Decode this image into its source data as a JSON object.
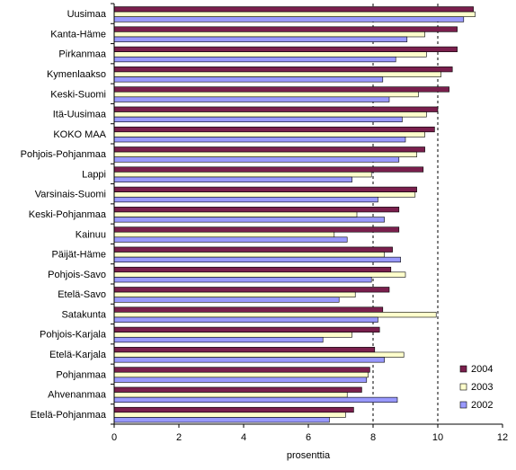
{
  "chart_data": {
    "type": "bar",
    "orientation": "horizontal",
    "xlabel": "prosenttia",
    "xlim": [
      0,
      12
    ],
    "xticks": [
      0,
      2,
      4,
      6,
      8,
      10,
      12
    ],
    "grid": false,
    "reference_lines": [
      8,
      10
    ],
    "legend_position": "bottom-right",
    "categories": [
      "Uusimaa",
      "Kanta-Häme",
      "Pirkanmaa",
      "Kymenlaakso",
      "Keski-Suomi",
      "Itä-Uusimaa",
      "KOKO MAA",
      "Pohjois-Pohjanmaa",
      "Lappi",
      "Varsinais-Suomi",
      "Keski-Pohjanmaa",
      "Kainuu",
      "Päijät-Häme",
      "Pohjois-Savo",
      "Etelä-Savo",
      "Satakunta",
      "Pohjois-Karjala",
      "Etelä-Karjala",
      "Pohjanmaa",
      "Ahvenanmaa",
      "Etelä-Pohjanmaa"
    ],
    "series": [
      {
        "name": "2004",
        "color": "#7a1f4d",
        "values": [
          11.1,
          10.6,
          10.6,
          10.45,
          10.35,
          10.0,
          9.9,
          9.6,
          9.55,
          9.35,
          8.8,
          8.8,
          8.6,
          8.55,
          8.5,
          8.3,
          8.2,
          8.05,
          7.9,
          7.65,
          7.4
        ]
      },
      {
        "name": "2003",
        "color": "#ffffcc",
        "values": [
          11.15,
          9.6,
          9.65,
          10.1,
          9.4,
          9.65,
          9.6,
          9.35,
          7.95,
          9.3,
          7.5,
          6.8,
          8.35,
          9.0,
          7.45,
          9.95,
          7.35,
          8.95,
          7.85,
          7.2,
          7.15
        ]
      },
      {
        "name": "2002",
        "color": "#9999ff",
        "values": [
          10.8,
          9.05,
          8.7,
          8.3,
          8.5,
          8.9,
          9.0,
          8.8,
          7.35,
          8.15,
          8.35,
          7.2,
          8.85,
          7.95,
          6.95,
          8.15,
          6.45,
          8.35,
          7.8,
          8.75,
          6.65
        ]
      }
    ]
  }
}
